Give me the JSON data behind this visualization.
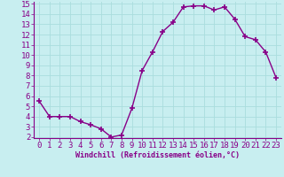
{
  "x": [
    0,
    1,
    2,
    3,
    4,
    5,
    6,
    7,
    8,
    9,
    10,
    11,
    12,
    13,
    14,
    15,
    16,
    17,
    18,
    19,
    20,
    21,
    22,
    23
  ],
  "y": [
    5.5,
    4.0,
    4.0,
    4.0,
    3.5,
    3.2,
    2.8,
    2.0,
    2.2,
    4.8,
    8.5,
    10.3,
    12.3,
    13.2,
    14.7,
    14.8,
    14.8,
    14.4,
    14.7,
    13.5,
    11.8,
    11.5,
    10.3,
    7.8
  ],
  "line_color": "#880088",
  "marker": "+",
  "marker_size": 4,
  "marker_lw": 1.2,
  "bg_color": "#c8eef0",
  "grid_color": "#aadddd",
  "xlabel": "Windchill (Refroidissement éolien,°C)",
  "xlabel_color": "#880088",
  "tick_color": "#880088",
  "ylim": [
    2,
    15
  ],
  "xlim": [
    -0.5,
    23.5
  ],
  "yticks": [
    2,
    3,
    4,
    5,
    6,
    7,
    8,
    9,
    10,
    11,
    12,
    13,
    14,
    15
  ],
  "xticks": [
    0,
    1,
    2,
    3,
    4,
    5,
    6,
    7,
    8,
    9,
    10,
    11,
    12,
    13,
    14,
    15,
    16,
    17,
    18,
    19,
    20,
    21,
    22,
    23
  ],
  "label_fontsize": 6,
  "tick_fontsize": 6.5,
  "linewidth": 1.0
}
